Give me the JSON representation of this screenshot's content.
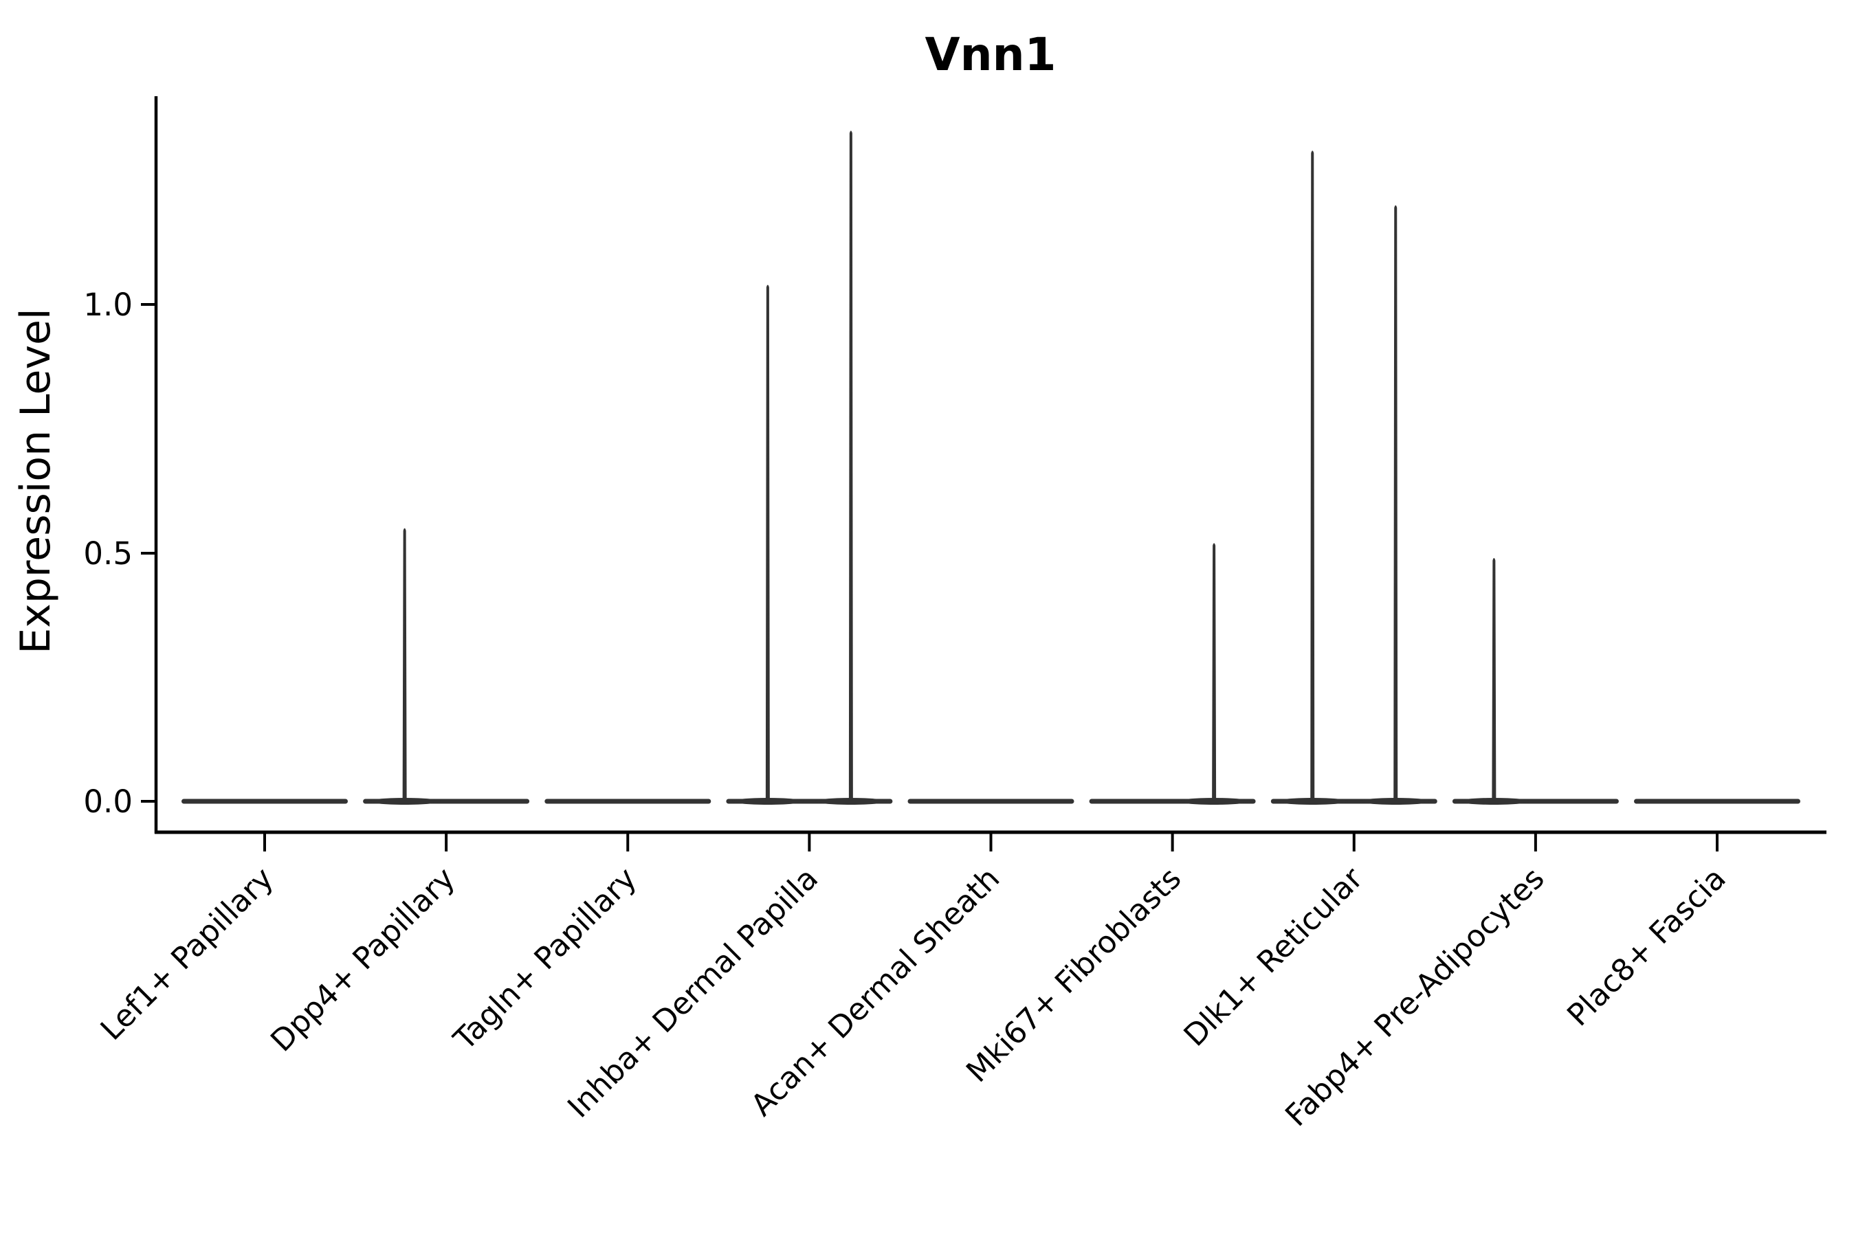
{
  "figure": {
    "background": "#ffffff"
  },
  "chart_data": {
    "type": "violin",
    "title": "Vnn1",
    "ylabel": "Expression Level",
    "xlabel": "",
    "yticks": [
      "1.0",
      "0.5",
      "0.0"
    ],
    "ytick_values": [
      1.0,
      0.5,
      0.0
    ],
    "ylim": [
      -0.06,
      1.42
    ],
    "grid": false,
    "legend": "none",
    "violin_color": "#333333",
    "axis_color": "#000000",
    "categories": [
      "Lef1+ Papillary",
      "Dpp4+ Papillary",
      "Tagln+ Papillary",
      "Inhba+ Dermal Papilla",
      "Acan+ Dermal Sheath",
      "Mki67+ Fibroblasts",
      "Dlk1+ Reticular",
      "Fabp4+ Pre-Adipocytes",
      "Plac8+ Fascia"
    ],
    "violins": [
      {
        "body_value": 0.0,
        "tails": []
      },
      {
        "body_value": 0.0,
        "tails": [
          {
            "side": "left",
            "peak": 0.55
          }
        ]
      },
      {
        "body_value": 0.0,
        "tails": []
      },
      {
        "body_value": 0.0,
        "tails": [
          {
            "side": "left",
            "peak": 1.04
          },
          {
            "side": "right",
            "peak": 1.35
          }
        ]
      },
      {
        "body_value": 0.0,
        "tails": []
      },
      {
        "body_value": 0.0,
        "tails": [
          {
            "side": "right",
            "peak": 0.52
          }
        ]
      },
      {
        "body_value": 0.0,
        "tails": [
          {
            "side": "left",
            "peak": 1.31
          },
          {
            "side": "right",
            "peak": 1.2
          }
        ]
      },
      {
        "body_value": 0.0,
        "tails": [
          {
            "side": "left",
            "peak": 0.49
          }
        ]
      },
      {
        "body_value": 0.0,
        "tails": []
      }
    ]
  }
}
